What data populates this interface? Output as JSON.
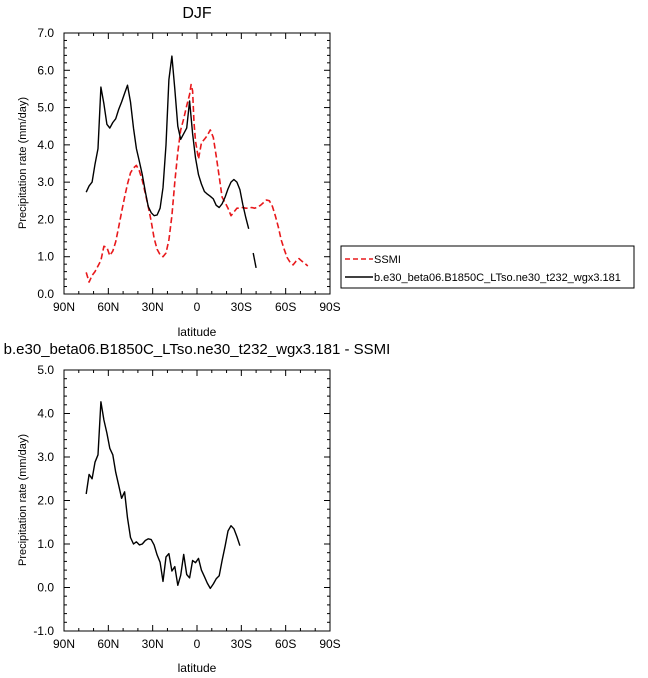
{
  "chart_data": [
    {
      "type": "line",
      "title": "DJF",
      "xlabel": "latitude",
      "ylabel": "Precipitation rate (mm/day)",
      "xlim": [
        90,
        -90
      ],
      "ylim": [
        0,
        7
      ],
      "xticks": [
        90,
        60,
        30,
        0,
        -30,
        -60,
        -90
      ],
      "xtick_labels": [
        "90N",
        "60N",
        "30N",
        "0",
        "30S",
        "60S",
        "90S"
      ],
      "yticks": [
        0,
        1,
        2,
        3,
        4,
        5,
        6,
        7
      ],
      "ytick_labels": [
        "0.0",
        "1.0",
        "2.0",
        "3.0",
        "4.0",
        "5.0",
        "6.0",
        "7.0"
      ],
      "legend_position": "right",
      "series": [
        {
          "name": "SSMI",
          "color": "#e8191c",
          "dash": true,
          "segments": [
            [
              [
                75,
                0.58
              ],
              [
                73,
                0.32
              ],
              [
                71,
                0.5
              ],
              [
                69,
                0.6
              ],
              [
                67,
                0.75
              ],
              [
                65,
                0.9
              ],
              [
                63,
                1.28
              ],
              [
                61,
                1.25
              ],
              [
                59,
                1.03
              ],
              [
                57,
                1.15
              ],
              [
                55,
                1.4
              ],
              [
                53,
                1.8
              ],
              [
                51,
                2.2
              ],
              [
                49,
                2.6
              ],
              [
                47,
                2.95
              ],
              [
                45,
                3.25
              ],
              [
                43,
                3.38
              ],
              [
                41,
                3.45
              ],
              [
                39,
                3.3
              ],
              [
                37,
                3.05
              ],
              [
                35,
                2.7
              ],
              [
                33,
                2.35
              ],
              [
                31,
                1.95
              ],
              [
                29,
                1.5
              ],
              [
                27,
                1.2
              ],
              [
                25,
                1.05
              ],
              [
                23,
                1.0
              ],
              [
                21,
                1.1
              ],
              [
                19,
                1.45
              ],
              [
                17,
                2.1
              ],
              [
                15,
                3.0
              ],
              [
                13,
                3.8
              ],
              [
                11,
                4.4
              ],
              [
                9,
                4.7
              ],
              [
                7,
                5.05
              ],
              [
                5,
                5.35
              ],
              [
                4,
                5.62
              ],
              [
                3,
                5.45
              ],
              [
                2,
                4.6
              ],
              [
                1,
                4.1
              ],
              [
                -1,
                3.62
              ],
              [
                -3,
                4.05
              ],
              [
                -5,
                4.15
              ],
              [
                -7,
                4.25
              ],
              [
                -9,
                4.4
              ],
              [
                -11,
                4.2
              ],
              [
                -13,
                3.7
              ],
              [
                -15,
                3.15
              ],
              [
                -17,
                2.6
              ],
              [
                -19,
                2.45
              ],
              [
                -21,
                2.3
              ],
              [
                -23,
                2.1
              ],
              [
                -25,
                2.2
              ],
              [
                -27,
                2.3
              ],
              [
                -29,
                2.3
              ],
              [
                -31,
                2.32
              ],
              [
                -33,
                2.3
              ],
              [
                -35,
                2.3
              ],
              [
                -37,
                2.32
              ],
              [
                -39,
                2.3
              ],
              [
                -41,
                2.33
              ],
              [
                -43,
                2.38
              ],
              [
                -45,
                2.45
              ],
              [
                -47,
                2.52
              ],
              [
                -49,
                2.5
              ],
              [
                -51,
                2.35
              ],
              [
                -53,
                2.1
              ],
              [
                -55,
                1.8
              ],
              [
                -57,
                1.45
              ],
              [
                -59,
                1.2
              ],
              [
                -61,
                0.98
              ],
              [
                -63,
                0.85
              ],
              [
                -65,
                0.78
              ],
              [
                -67,
                0.88
              ],
              [
                -69,
                0.95
              ],
              [
                -71,
                0.88
              ],
              [
                -73,
                0.82
              ],
              [
                -75,
                0.75
              ]
            ]
          ]
        },
        {
          "name": "b.e30_beta06.B1850C_LTso.ne30_t232_wgx3.181",
          "color": "#000000",
          "dash": false,
          "segments": [
            [
              [
                75,
                2.73
              ],
              [
                73,
                2.9
              ],
              [
                71,
                3.0
              ],
              [
                69,
                3.48
              ],
              [
                67,
                3.9
              ],
              [
                65,
                5.55
              ],
              [
                63,
                5.1
              ],
              [
                61,
                4.55
              ],
              [
                59,
                4.45
              ],
              [
                57,
                4.6
              ],
              [
                55,
                4.7
              ],
              [
                53,
                4.95
              ],
              [
                51,
                5.15
              ],
              [
                49,
                5.38
              ],
              [
                47,
                5.6
              ],
              [
                45,
                5.15
              ],
              [
                43,
                4.45
              ],
              [
                41,
                3.9
              ],
              [
                39,
                3.55
              ],
              [
                37,
                3.2
              ],
              [
                35,
                2.75
              ],
              [
                33,
                2.35
              ],
              [
                31,
                2.18
              ],
              [
                29,
                2.1
              ],
              [
                27,
                2.12
              ],
              [
                25,
                2.3
              ],
              [
                23,
                2.85
              ],
              [
                21,
                4.0
              ],
              [
                19,
                5.75
              ],
              [
                17,
                6.38
              ],
              [
                15,
                5.5
              ],
              [
                13,
                4.5
              ],
              [
                11,
                4.15
              ],
              [
                9,
                4.3
              ],
              [
                7,
                4.45
              ],
              [
                5,
                5.18
              ],
              [
                3,
                4.3
              ],
              [
                1,
                3.65
              ],
              [
                -1,
                3.2
              ],
              [
                -3,
                2.95
              ],
              [
                -5,
                2.75
              ],
              [
                -7,
                2.68
              ],
              [
                -9,
                2.62
              ],
              [
                -11,
                2.55
              ],
              [
                -13,
                2.38
              ],
              [
                -15,
                2.32
              ],
              [
                -17,
                2.42
              ],
              [
                -19,
                2.6
              ],
              [
                -21,
                2.82
              ],
              [
                -23,
                3.0
              ],
              [
                -25,
                3.07
              ],
              [
                -27,
                3.0
              ],
              [
                -29,
                2.8
              ],
              [
                -31,
                2.4
              ],
              [
                -33,
                2.05
              ],
              [
                -35,
                1.75
              ]
            ],
            [
              [
                -38,
                1.1
              ],
              [
                -40,
                0.7
              ]
            ]
          ]
        }
      ]
    },
    {
      "type": "line",
      "title": "b.e30_beta06.B1850C_LTso.ne30_t232_wgx3.181 - SSMI",
      "xlabel": "latitude",
      "ylabel": "Precipitation rate (mm/day)",
      "xlim": [
        90,
        -90
      ],
      "ylim": [
        -1,
        5
      ],
      "xticks": [
        90,
        60,
        30,
        0,
        -30,
        -60,
        -90
      ],
      "xtick_labels": [
        "90N",
        "60N",
        "30N",
        "0",
        "30S",
        "60S",
        "90S"
      ],
      "yticks": [
        -1,
        0,
        1,
        2,
        3,
        4,
        5
      ],
      "ytick_labels": [
        "-1.0",
        "0.0",
        "1.0",
        "2.0",
        "3.0",
        "4.0",
        "5.0"
      ],
      "series": [
        {
          "color": "#000000",
          "dash": false,
          "segments": [
            [
              [
                75,
                2.15
              ],
              [
                73,
                2.6
              ],
              [
                71,
                2.5
              ],
              [
                69,
                2.88
              ],
              [
                67,
                3.05
              ],
              [
                65,
                4.27
              ],
              [
                63,
                3.85
              ],
              [
                61,
                3.55
              ],
              [
                59,
                3.2
              ],
              [
                57,
                3.05
              ],
              [
                55,
                2.65
              ],
              [
                53,
                2.35
              ],
              [
                51,
                2.05
              ],
              [
                49,
                2.2
              ],
              [
                47,
                1.6
              ],
              [
                45,
                1.15
              ],
              [
                43,
                1.0
              ],
              [
                41,
                1.05
              ],
              [
                39,
                0.98
              ],
              [
                37,
                1.0
              ],
              [
                35,
                1.08
              ],
              [
                33,
                1.12
              ],
              [
                31,
                1.1
              ],
              [
                29,
                0.98
              ],
              [
                27,
                0.75
              ],
              [
                25,
                0.58
              ],
              [
                23,
                0.14
              ],
              [
                21,
                0.7
              ],
              [
                19,
                0.78
              ],
              [
                17,
                0.38
              ],
              [
                15,
                0.48
              ],
              [
                13,
                0.05
              ],
              [
                11,
                0.28
              ],
              [
                9,
                0.76
              ],
              [
                7,
                0.3
              ],
              [
                5,
                0.22
              ],
              [
                3,
                0.62
              ],
              [
                1,
                0.57
              ],
              [
                -1,
                0.67
              ],
              [
                -3,
                0.4
              ],
              [
                -5,
                0.25
              ],
              [
                -7,
                0.1
              ],
              [
                -9,
                -0.02
              ],
              [
                -11,
                0.08
              ],
              [
                -13,
                0.2
              ],
              [
                -15,
                0.27
              ],
              [
                -17,
                0.62
              ],
              [
                -19,
                0.95
              ],
              [
                -21,
                1.3
              ],
              [
                -23,
                1.42
              ],
              [
                -25,
                1.35
              ],
              [
                -27,
                1.17
              ],
              [
                -29,
                0.96
              ]
            ]
          ]
        }
      ]
    }
  ]
}
